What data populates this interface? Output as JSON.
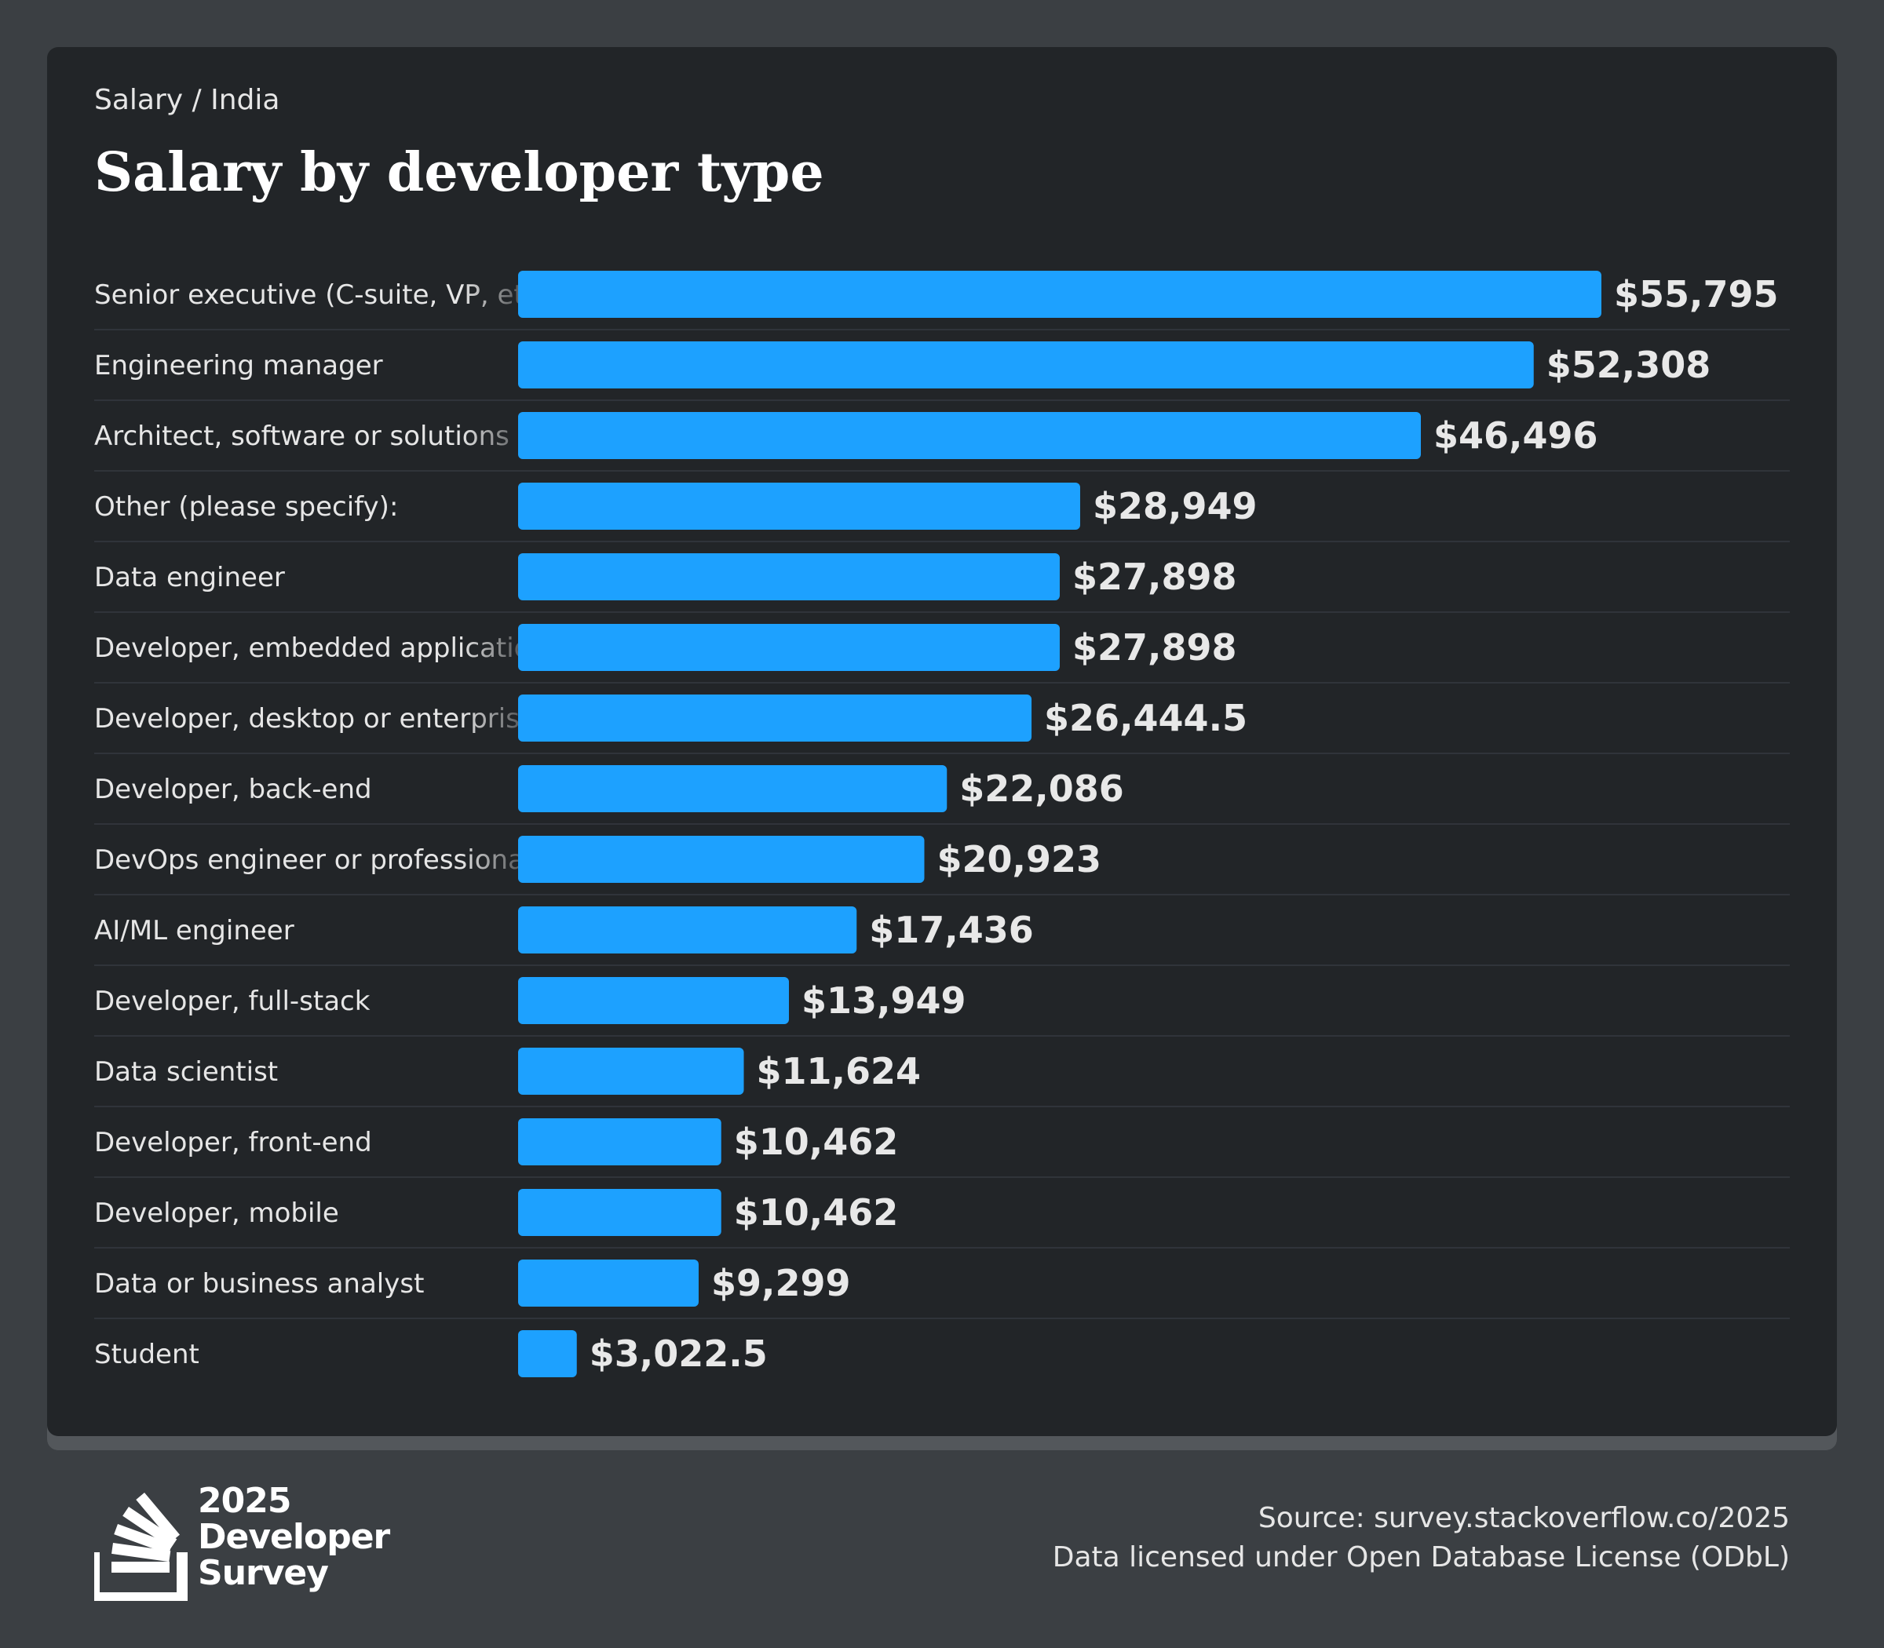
{
  "breadcrumb": "Salary / India",
  "title": "Salary by developer type",
  "colors": {
    "bar": "#1da1ff",
    "card": "#222528",
    "background": "#3b3f43"
  },
  "chart_data": {
    "type": "bar",
    "orientation": "horizontal",
    "title": "Salary by developer type",
    "categories": [
      "Senior executive (C-suite, VP, etc.)",
      "Engineering manager",
      "Architect, software or solutions",
      "Other (please specify):",
      "Data engineer",
      "Developer, embedded applications or devices",
      "Developer, desktop or enterprise applications",
      "Developer, back-end",
      "DevOps engineer or professional",
      "AI/ML engineer",
      "Developer, full-stack",
      "Data scientist",
      "Developer, front-end",
      "Developer, mobile",
      "Data or business analyst",
      "Student"
    ],
    "values": [
      55795,
      52308,
      46496,
      28949,
      27898,
      27898,
      26444.5,
      22086,
      20923,
      17436,
      13949,
      11624,
      10462,
      10462,
      9299,
      3022.5
    ],
    "value_labels": [
      "$55,795",
      "$52,308",
      "$46,496",
      "$28,949",
      "$27,898",
      "$27,898",
      "$26,444.5",
      "$22,086",
      "$20,923",
      "$17,436",
      "$13,949",
      "$11,624",
      "$10,462",
      "$10,462",
      "$9,299",
      "$3,022.5"
    ],
    "xlim": [
      0,
      55795
    ]
  },
  "footer": {
    "logo_lines": [
      "2025",
      "Developer",
      "Survey"
    ],
    "source": "Source: survey.stackoverflow.co/2025",
    "license": "Data licensed under Open Database License (ODbL)"
  }
}
